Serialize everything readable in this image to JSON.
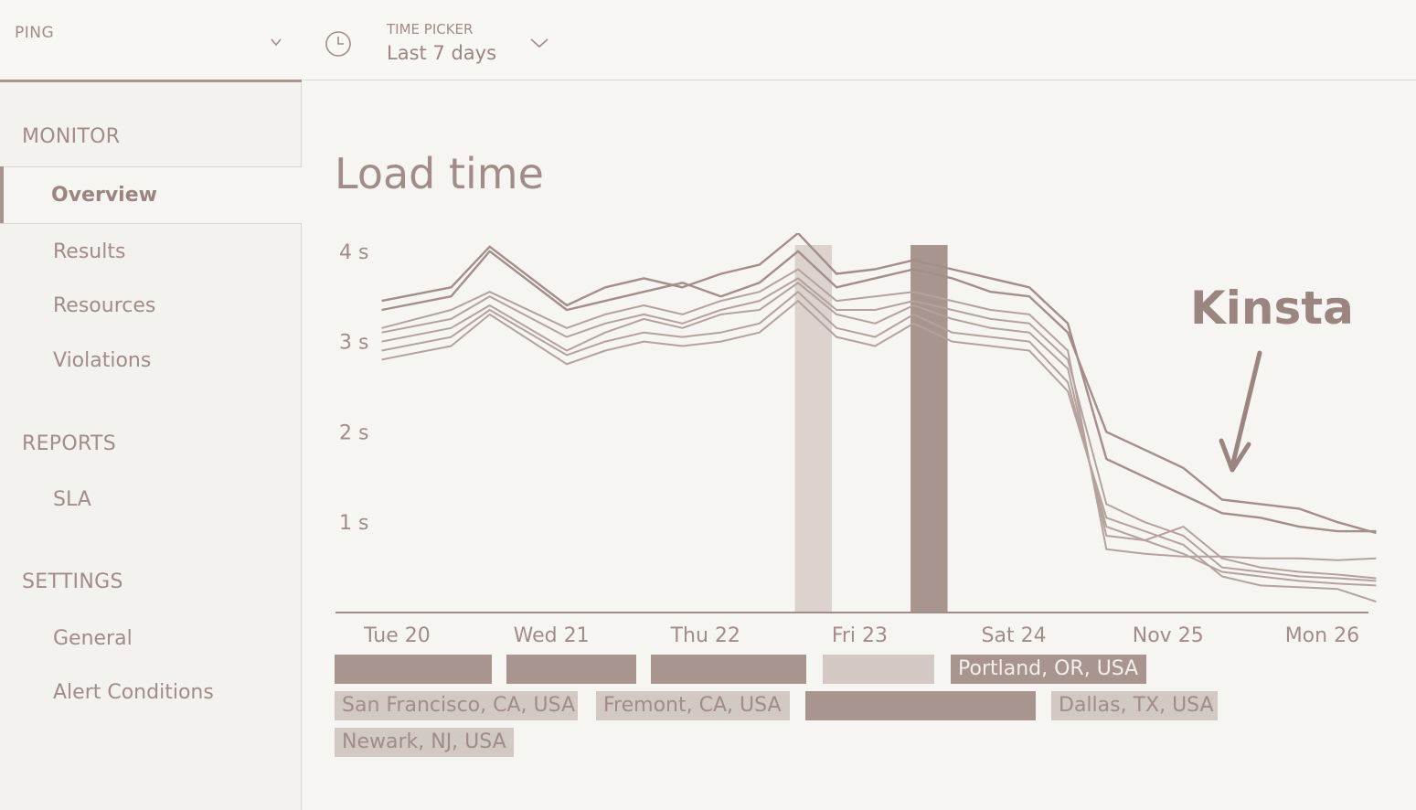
{
  "sidebar": {
    "app_name": "PING",
    "sections": {
      "monitor": "MONITOR",
      "reports": "REPORTS",
      "settings": "SETTINGS"
    },
    "items": {
      "overview": "Overview",
      "results": "Results",
      "resources": "Resources",
      "violations": "Violations",
      "sla": "SLA",
      "general": "General",
      "alert_conditions": "Alert Conditions"
    }
  },
  "time_picker": {
    "label": "TIME PICKER",
    "value": "Last 7 days"
  },
  "page": {
    "title": "Load time"
  },
  "annotation": {
    "text": "Kinsta"
  },
  "legend": [
    {
      "label": "",
      "style": "dark"
    },
    {
      "label": "",
      "style": "dark"
    },
    {
      "label": "",
      "style": "dark"
    },
    {
      "label": "",
      "style": "light"
    },
    {
      "label": "Portland, OR, USA",
      "style": "dark"
    },
    {
      "label": "San Francisco, CA, USA",
      "style": "light"
    },
    {
      "label": "Fremont, CA, USA",
      "style": "light"
    },
    {
      "label": "",
      "style": "dark"
    },
    {
      "label": "Dallas, TX, USA",
      "style": "light"
    },
    {
      "label": "Newark, NJ, USA",
      "style": "light"
    }
  ],
  "colors": {
    "accent": "#a9958f",
    "text": "#a08c88",
    "light_band": "#dcd3cf",
    "dark_band": "#a9958f"
  },
  "chart_data": {
    "type": "line",
    "title": "Load time",
    "ylim": [
      0,
      4.2
    ],
    "yticks": [
      {
        "value": 1,
        "label": "1 s"
      },
      {
        "value": 2,
        "label": "2 s"
      },
      {
        "value": 3,
        "label": "3 s"
      },
      {
        "value": 4,
        "label": "4 s"
      }
    ],
    "xlim": [
      0,
      6.7
    ],
    "xticks": [
      {
        "value": 0.4,
        "label": "Tue 20"
      },
      {
        "value": 1.4,
        "label": "Wed 21"
      },
      {
        "value": 2.4,
        "label": "Thu 22"
      },
      {
        "value": 3.4,
        "label": "Fri 23"
      },
      {
        "value": 4.4,
        "label": "Sat 24"
      },
      {
        "value": 5.4,
        "label": "Nov 25"
      },
      {
        "value": 6.4,
        "label": "Mon 26"
      }
    ],
    "bands": [
      {
        "x0": 2.98,
        "x1": 3.22,
        "style": "light"
      },
      {
        "x0": 3.73,
        "x1": 3.97,
        "style": "dark"
      }
    ],
    "x": [
      0.3,
      0.75,
      1.0,
      1.5,
      1.75,
      2.0,
      2.25,
      2.5,
      2.75,
      3.0,
      3.25,
      3.5,
      3.75,
      4.0,
      4.25,
      4.5,
      4.75,
      5.0,
      5.25,
      5.5,
      5.75,
      6.0,
      6.25,
      6.5,
      6.75
    ],
    "series": [
      {
        "values": [
          3.35,
          3.5,
          4.0,
          3.35,
          3.45,
          3.55,
          3.65,
          3.5,
          3.65,
          4.0,
          3.6,
          3.7,
          3.8,
          3.7,
          3.55,
          3.5,
          3.1,
          2.0,
          1.8,
          1.6,
          1.25,
          1.2,
          1.15,
          1.0,
          0.88
        ]
      },
      {
        "values": [
          3.45,
          3.6,
          4.05,
          3.4,
          3.6,
          3.7,
          3.6,
          3.75,
          3.85,
          4.2,
          3.75,
          3.8,
          3.9,
          3.8,
          3.7,
          3.6,
          3.2,
          1.7,
          1.5,
          1.3,
          1.1,
          1.05,
          0.95,
          0.9,
          0.9
        ]
      },
      {
        "values": [
          3.15,
          3.35,
          3.55,
          3.15,
          3.3,
          3.4,
          3.3,
          3.45,
          3.55,
          3.8,
          3.45,
          3.5,
          3.55,
          3.45,
          3.35,
          3.3,
          2.9,
          0.7,
          0.65,
          0.62,
          0.62,
          0.6,
          0.6,
          0.58,
          0.6
        ]
      },
      {
        "values": [
          3.0,
          3.15,
          3.4,
          2.9,
          3.1,
          3.25,
          3.15,
          3.3,
          3.35,
          3.65,
          3.3,
          3.2,
          3.4,
          3.25,
          3.15,
          3.1,
          2.7,
          0.85,
          0.8,
          0.95,
          0.6,
          0.5,
          0.45,
          0.42,
          0.38
        ]
      },
      {
        "values": [
          2.9,
          3.05,
          3.35,
          2.85,
          3.0,
          3.1,
          3.05,
          3.1,
          3.2,
          3.55,
          3.15,
          3.05,
          3.3,
          3.1,
          3.05,
          3.0,
          2.55,
          0.95,
          0.8,
          0.65,
          0.45,
          0.4,
          0.35,
          0.32,
          0.3
        ]
      },
      {
        "values": [
          2.8,
          2.95,
          3.3,
          2.75,
          2.9,
          3.0,
          2.95,
          3.0,
          3.1,
          3.45,
          3.05,
          2.95,
          3.2,
          3.0,
          2.95,
          2.9,
          2.45,
          1.05,
          0.9,
          0.75,
          0.4,
          0.3,
          0.28,
          0.26,
          0.12
        ]
      },
      {
        "values": [
          3.1,
          3.25,
          3.5,
          3.05,
          3.2,
          3.3,
          3.2,
          3.35,
          3.45,
          3.7,
          3.35,
          3.35,
          3.45,
          3.35,
          3.25,
          3.2,
          2.8,
          1.2,
          1.0,
          0.85,
          0.5,
          0.45,
          0.4,
          0.38,
          0.35
        ]
      }
    ]
  }
}
